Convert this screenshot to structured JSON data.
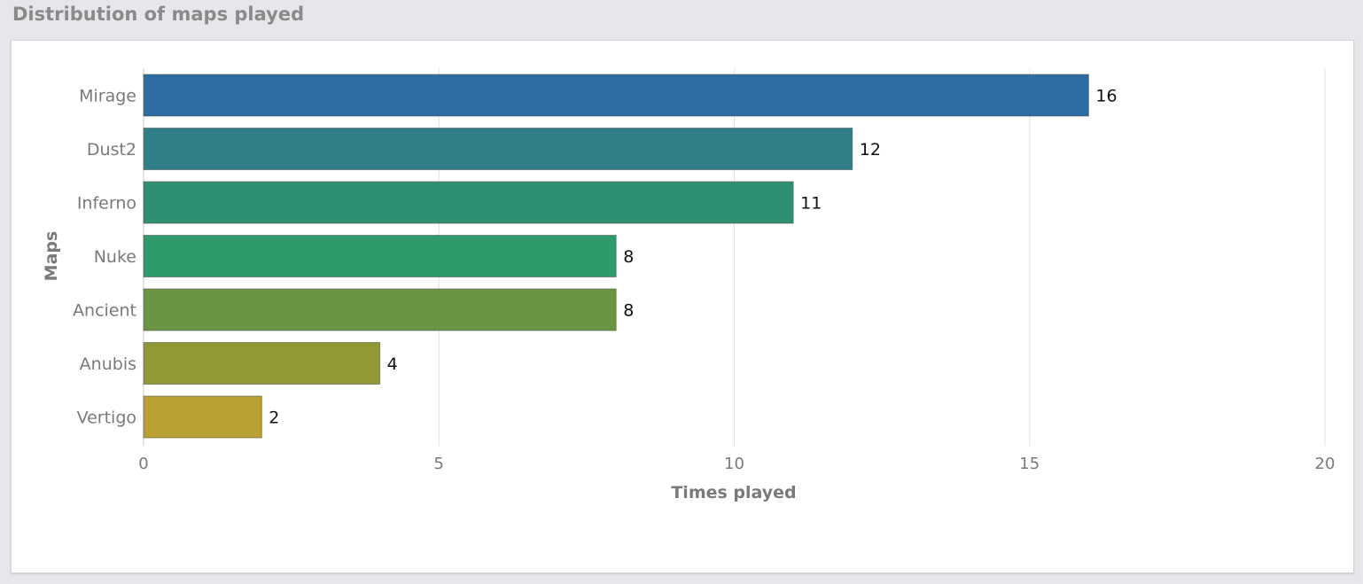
{
  "panel": {
    "title": "Distribution of maps played"
  },
  "chart_data": {
    "type": "bar",
    "orientation": "horizontal",
    "categories": [
      "Mirage",
      "Dust2",
      "Inferno",
      "Nuke",
      "Ancient",
      "Anubis",
      "Vertigo"
    ],
    "values": [
      16,
      12,
      11,
      8,
      8,
      4,
      2
    ],
    "colors": [
      "#2e6da4",
      "#2e7f88",
      "#2e8f72",
      "#2f9a6a",
      "#6b9542",
      "#939836",
      "#baa032"
    ],
    "xlabel": "Times played",
    "ylabel": "Maps",
    "xlim": [
      0,
      20
    ],
    "xticks": [
      0,
      5,
      10,
      15,
      20
    ],
    "grid": true,
    "data_labels": true
  }
}
